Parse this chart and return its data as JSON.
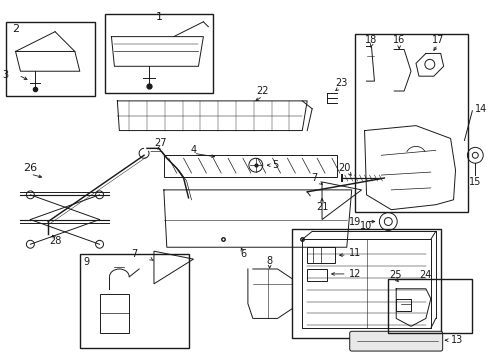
{
  "background_color": "#ffffff",
  "line_color": "#1a1a1a",
  "text_color": "#1a1a1a",
  "fig_width": 4.89,
  "fig_height": 3.6,
  "dpi": 100,
  "lw": 0.7,
  "fontsize": 6.5
}
